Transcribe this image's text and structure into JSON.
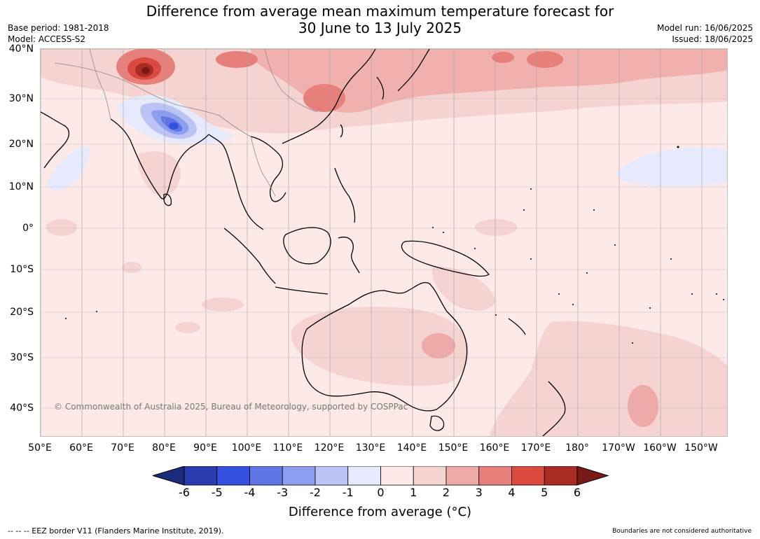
{
  "title": {
    "line1": "Difference from average mean maximum temperature forecast for",
    "line2": "30 June to 13 July 2025"
  },
  "meta_left": {
    "base_period": "Base period: 1981-2018",
    "model": "Model: ACCESS-S2"
  },
  "meta_right": {
    "model_run": "Model run: 16/06/2025",
    "issued": "Issued: 18/06/2025"
  },
  "lat_labels": [
    "40°N",
    "30°N",
    "20°N",
    "10°N",
    "0°",
    "10°S",
    "20°S",
    "30°S",
    "40°S"
  ],
  "lon_labels": [
    "50°E",
    "60°E",
    "70°E",
    "80°E",
    "90°E",
    "100°E",
    "110°E",
    "120°E",
    "130°E",
    "140°E",
    "150°E",
    "160°E",
    "170°E",
    "180°",
    "170°W",
    "160°W",
    "150°W"
  ],
  "copyright": "© Commonwealth of Australia 2025, Bureau of Meteorology, supported by COSPPac",
  "colorbar": {
    "ticks": [
      "-6",
      "-5",
      "-4",
      "-3",
      "-2",
      "-1",
      "0",
      "1",
      "2",
      "3",
      "4",
      "5",
      "6"
    ],
    "colors": [
      "#1c2b7a",
      "#2a3db0",
      "#3551e0",
      "#6176e6",
      "#8d9df0",
      "#bcc4f5",
      "#e6eafc",
      "#fce9e8",
      "#f5d3d1",
      "#eeaaa8",
      "#e77f7b",
      "#db4a3f",
      "#aa2a24",
      "#7a1a16"
    ],
    "label": "Difference from average (°C)"
  },
  "footer": {
    "eez": "--  --  -- EEZ border V11 (Flanders Marine Institute, 2019).",
    "boundaries": "Boundaries are not considered authoritative"
  }
}
